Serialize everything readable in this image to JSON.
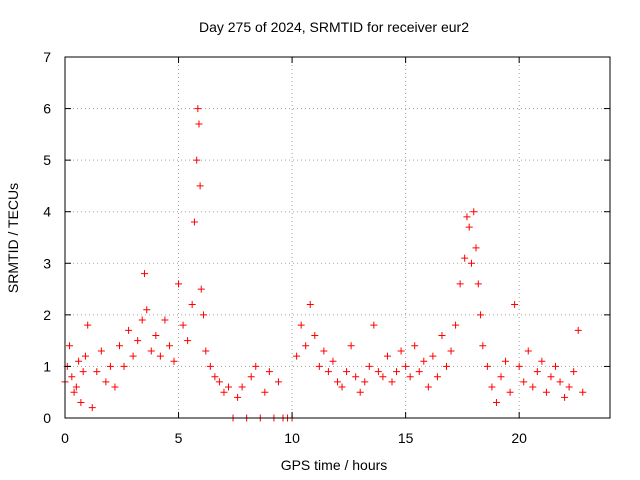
{
  "chart_data": {
    "type": "scatter",
    "title": "Day 275 of 2024, SRMTID for receiver eur2",
    "xlabel": "GPS time / hours",
    "ylabel": "SRMTID / TECUs",
    "xlim": [
      0,
      24
    ],
    "ylim": [
      0,
      7
    ],
    "xticks": [
      0,
      5,
      10,
      15,
      20
    ],
    "yticks": [
      0,
      1,
      2,
      3,
      4,
      5,
      6,
      7
    ],
    "grid": true,
    "marker": "+",
    "color": "#ff0000",
    "series": [
      {
        "name": "SRMTID",
        "x": [
          0.0,
          0.1,
          0.2,
          0.3,
          0.4,
          0.5,
          0.6,
          0.7,
          0.8,
          0.9,
          1.0,
          1.2,
          1.4,
          1.6,
          1.8,
          2.0,
          2.2,
          2.4,
          2.6,
          2.8,
          3.0,
          3.2,
          3.4,
          3.5,
          3.6,
          3.8,
          4.0,
          4.2,
          4.4,
          4.6,
          4.8,
          5.0,
          5.2,
          5.4,
          5.6,
          5.7,
          5.8,
          5.85,
          5.9,
          5.95,
          6.0,
          6.1,
          6.2,
          6.4,
          6.6,
          6.8,
          7.0,
          7.2,
          7.4,
          7.6,
          7.8,
          8.0,
          8.2,
          8.4,
          8.6,
          8.8,
          9.0,
          9.2,
          9.4,
          9.6,
          9.8,
          10.0,
          10.2,
          10.4,
          10.6,
          10.8,
          11.0,
          11.2,
          11.4,
          11.6,
          11.8,
          12.0,
          12.2,
          12.4,
          12.6,
          12.8,
          13.0,
          13.2,
          13.4,
          13.6,
          13.8,
          14.0,
          14.2,
          14.4,
          14.6,
          14.8,
          15.0,
          15.2,
          15.4,
          15.6,
          15.8,
          16.0,
          16.2,
          16.4,
          16.6,
          16.8,
          17.0,
          17.2,
          17.4,
          17.6,
          17.7,
          17.8,
          17.9,
          18.0,
          18.1,
          18.2,
          18.3,
          18.4,
          18.6,
          18.8,
          19.0,
          19.2,
          19.4,
          19.6,
          19.8,
          20.0,
          20.2,
          20.4,
          20.6,
          20.8,
          21.0,
          21.2,
          21.4,
          21.6,
          21.8,
          22.0,
          22.2,
          22.4,
          22.6,
          22.8
        ],
        "y": [
          0.7,
          1.0,
          1.4,
          0.8,
          0.5,
          0.6,
          1.1,
          0.3,
          0.9,
          1.2,
          1.8,
          0.2,
          0.9,
          1.3,
          0.7,
          1.0,
          0.6,
          1.4,
          1.0,
          1.7,
          1.2,
          1.5,
          1.9,
          2.8,
          2.1,
          1.3,
          1.6,
          1.2,
          1.9,
          1.4,
          1.1,
          2.6,
          1.8,
          1.5,
          2.2,
          3.8,
          5.0,
          6.0,
          5.7,
          4.5,
          2.5,
          2.0,
          1.3,
          1.0,
          0.8,
          0.7,
          0.5,
          0.6,
          0.0,
          0.4,
          0.6,
          0.0,
          0.8,
          1.0,
          0.0,
          0.5,
          0.9,
          0.0,
          0.7,
          0.0,
          0.0,
          0.0,
          1.2,
          1.8,
          1.4,
          2.2,
          1.6,
          1.0,
          1.3,
          0.9,
          1.1,
          0.7,
          0.6,
          0.9,
          1.4,
          0.8,
          0.5,
          0.7,
          1.0,
          1.8,
          0.9,
          0.8,
          1.2,
          0.7,
          0.9,
          1.3,
          1.0,
          0.8,
          1.4,
          0.9,
          1.1,
          0.6,
          1.2,
          0.8,
          1.6,
          1.0,
          1.3,
          1.8,
          2.6,
          3.1,
          3.9,
          3.7,
          3.0,
          4.0,
          3.3,
          2.6,
          2.0,
          1.4,
          1.0,
          0.6,
          0.3,
          0.8,
          1.1,
          0.5,
          2.2,
          1.0,
          0.7,
          1.3,
          0.6,
          0.9,
          1.1,
          0.5,
          0.8,
          1.0,
          0.7,
          0.4,
          0.6,
          0.9,
          1.7,
          0.5
        ]
      }
    ]
  }
}
